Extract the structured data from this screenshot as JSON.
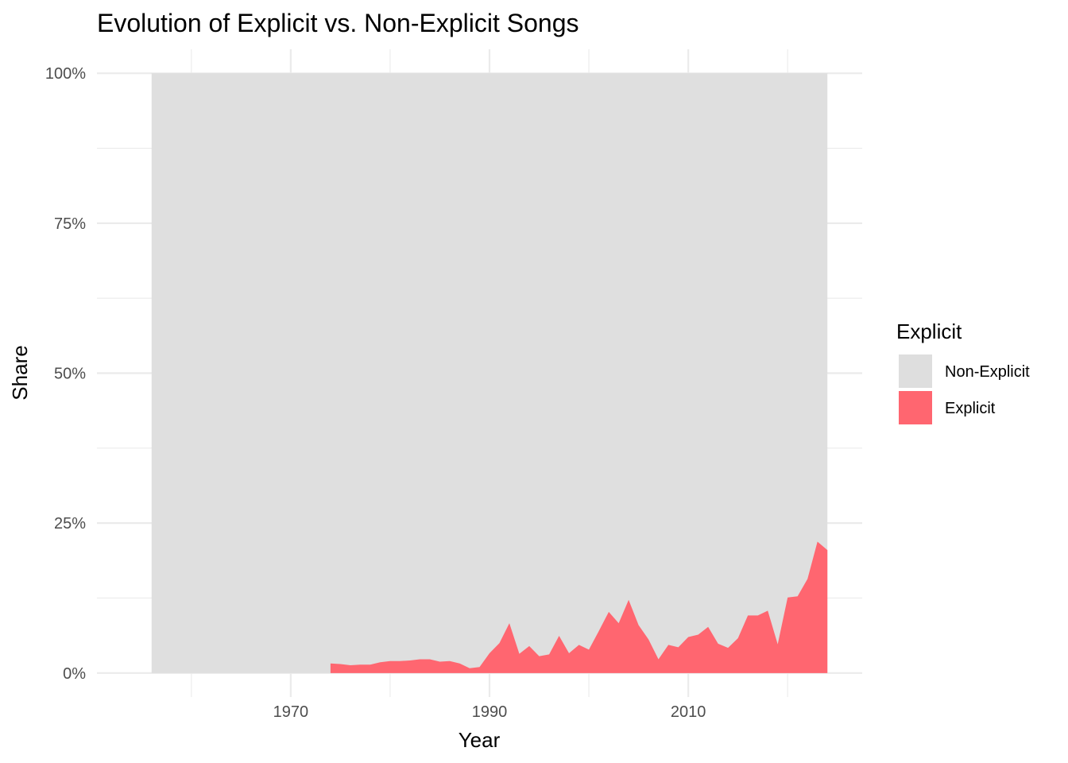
{
  "chart_data": {
    "type": "area",
    "stacked": true,
    "normalized": true,
    "title": "Evolution of Explicit vs. Non-Explicit Songs",
    "xlabel": "Year",
    "ylabel": "Share",
    "xlim": [
      1950.5,
      2027.5
    ],
    "ylim": [
      -0.04,
      1.04
    ],
    "x_ticks": [
      {
        "value": 1970,
        "label": "1970"
      },
      {
        "value": 1990,
        "label": "1990"
      },
      {
        "value": 2010,
        "label": "2010"
      }
    ],
    "x_minor_ticks": [
      1960,
      1980,
      2000,
      2020
    ],
    "y_ticks": [
      {
        "value": 0,
        "label": "0%"
      },
      {
        "value": 0.25,
        "label": "25%"
      },
      {
        "value": 0.5,
        "label": "50%"
      },
      {
        "value": 0.75,
        "label": "75%"
      },
      {
        "value": 1,
        "label": "100%"
      }
    ],
    "y_minor_ticks": [
      0.125,
      0.375,
      0.625,
      0.875
    ],
    "grid": true,
    "legend": {
      "title": "Explicit",
      "position": "right",
      "items": [
        {
          "label": "Non-Explicit",
          "color": "#dedede"
        },
        {
          "label": "Explicit",
          "color": "#ff6670"
        }
      ]
    },
    "series": [
      {
        "name": "Non-Explicit",
        "color": "#dedede",
        "x": [
          1956,
          2024
        ],
        "values": [
          1.0,
          1.0
        ]
      },
      {
        "name": "Explicit",
        "color": "#ff6670",
        "x": [
          1974,
          1975,
          1976,
          1977,
          1978,
          1979,
          1980,
          1981,
          1982,
          1983,
          1984,
          1985,
          1986,
          1987,
          1988,
          1989,
          1990,
          1991,
          1992,
          1993,
          1994,
          1995,
          1996,
          1997,
          1998,
          1999,
          2000,
          2001,
          2002,
          2003,
          2004,
          2005,
          2006,
          2007,
          2008,
          2009,
          2010,
          2011,
          2012,
          2013,
          2014,
          2015,
          2016,
          2017,
          2018,
          2019,
          2020,
          2021,
          2022,
          2023,
          2024
        ],
        "values": [
          0.016,
          0.015,
          0.013,
          0.014,
          0.014,
          0.018,
          0.02,
          0.02,
          0.021,
          0.023,
          0.023,
          0.019,
          0.02,
          0.016,
          0.008,
          0.01,
          0.033,
          0.05,
          0.083,
          0.032,
          0.045,
          0.028,
          0.031,
          0.062,
          0.033,
          0.047,
          0.039,
          0.07,
          0.102,
          0.083,
          0.122,
          0.08,
          0.056,
          0.023,
          0.047,
          0.043,
          0.06,
          0.064,
          0.077,
          0.049,
          0.042,
          0.058,
          0.096,
          0.096,
          0.104,
          0.048,
          0.126,
          0.128,
          0.157,
          0.219,
          0.205
        ]
      }
    ]
  }
}
